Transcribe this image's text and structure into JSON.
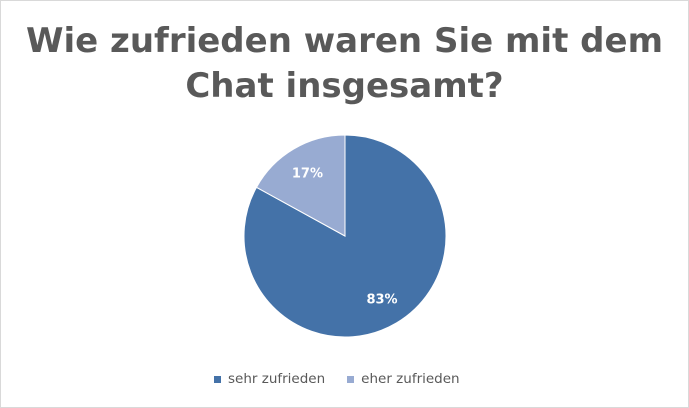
{
  "chart_data": {
    "type": "pie",
    "title": "Wie zufrieden waren Sie mit dem Chat insgesamt?",
    "title_lines": [
      "Wie zufrieden waren Sie mit dem",
      "Chat insgesamt?"
    ],
    "categories": [
      "sehr zufrieden",
      "eher zufrieden"
    ],
    "values": [
      83,
      17
    ],
    "value_labels": [
      "83%",
      "17%"
    ],
    "colors": [
      "#4472a8",
      "#98abd2"
    ],
    "legend_position": "bottom"
  }
}
